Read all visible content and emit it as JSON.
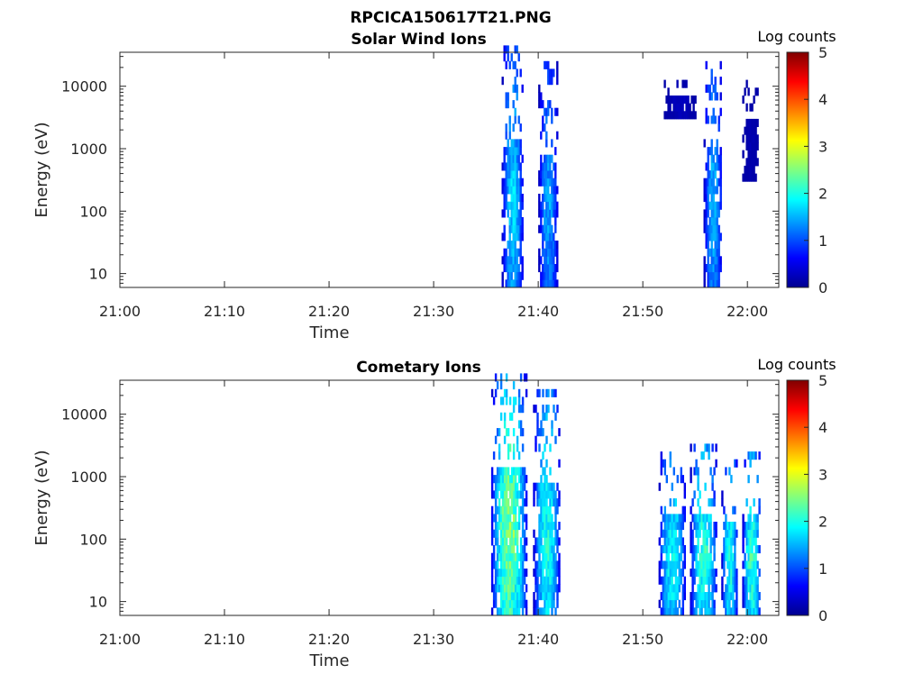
{
  "figure": {
    "title": "RPCICA150617T21.PNG"
  },
  "chart_data": [
    {
      "type": "heatmap",
      "title": "Solar Wind Ions",
      "xlabel": "Time",
      "ylabel": "Energy (eV)",
      "x_range": [
        "21:00",
        "22:03"
      ],
      "x_ticks": [
        "21:00",
        "21:10",
        "21:20",
        "21:30",
        "21:40",
        "21:50",
        "22:00"
      ],
      "y_scale": "log",
      "y_range": [
        6,
        35000
      ],
      "y_ticks": [
        10,
        100,
        1000,
        10000
      ],
      "y_tick_labels": [
        "10",
        "100",
        "1000",
        "10000"
      ],
      "colorbar": {
        "label": "Log counts",
        "range": [
          0,
          5
        ],
        "ticks": [
          "0",
          "1",
          "2",
          "3",
          "4",
          "5"
        ],
        "colormap": "jet"
      },
      "grid": false,
      "bursts": [
        {
          "t_start": "21:36.5",
          "t_end": "21:38.5",
          "e_min": 6,
          "e_max": 35000,
          "peak_log_counts": 2.0
        },
        {
          "t_start": "21:40.0",
          "t_end": "21:41.8",
          "e_min": 6,
          "e_max": 20000,
          "peak_log_counts": 1.7
        },
        {
          "t_start": "21:52.0",
          "t_end": "21:55.0",
          "e_min": 3000,
          "e_max": 10000,
          "peak_log_counts": 0.4
        },
        {
          "t_start": "21:55.8",
          "t_end": "21:57.5",
          "e_min": 6,
          "e_max": 30000,
          "peak_log_counts": 1.8
        },
        {
          "t_start": "21:59.5",
          "t_end": "22:01.0",
          "e_min": 300,
          "e_max": 10000,
          "peak_log_counts": 0.3
        }
      ]
    },
    {
      "type": "heatmap",
      "title": "Cometary Ions",
      "xlabel": "Time",
      "ylabel": "Energy (eV)",
      "x_range": [
        "21:00",
        "22:03"
      ],
      "x_ticks": [
        "21:00",
        "21:10",
        "21:20",
        "21:30",
        "21:40",
        "21:50",
        "22:00"
      ],
      "y_scale": "log",
      "y_range": [
        6,
        35000
      ],
      "y_ticks": [
        10,
        100,
        1000,
        10000
      ],
      "y_tick_labels": [
        "10",
        "100",
        "1000",
        "10000"
      ],
      "colorbar": {
        "label": "Log counts",
        "range": [
          0,
          5
        ],
        "ticks": [
          "0",
          "1",
          "2",
          "3",
          "4",
          "5"
        ],
        "colormap": "jet"
      },
      "grid": false,
      "bursts": [
        {
          "t_start": "21:35.5",
          "t_end": "21:38.8",
          "e_min": 6,
          "e_max": 35000,
          "peak_log_counts": 3.0
        },
        {
          "t_start": "21:39.5",
          "t_end": "21:42.0",
          "e_min": 6,
          "e_max": 20000,
          "peak_log_counts": 2.4
        },
        {
          "t_start": "21:51.5",
          "t_end": "21:54.0",
          "e_min": 6,
          "e_max": 2000,
          "peak_log_counts": 2.3
        },
        {
          "t_start": "21:54.5",
          "t_end": "21:57.0",
          "e_min": 6,
          "e_max": 3000,
          "peak_log_counts": 2.5
        },
        {
          "t_start": "21:57.5",
          "t_end": "21:59.0",
          "e_min": 6,
          "e_max": 1500,
          "peak_log_counts": 2.4
        },
        {
          "t_start": "21:59.5",
          "t_end": "22:01.2",
          "e_min": 6,
          "e_max": 2000,
          "peak_log_counts": 2.6
        }
      ]
    }
  ]
}
